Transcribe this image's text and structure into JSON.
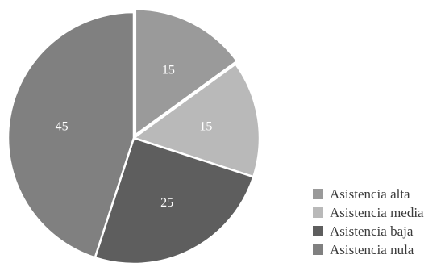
{
  "chart_data": {
    "type": "pie",
    "categories": [
      "Asistencia alta",
      "Asistencia media",
      "Asistencia baja",
      "Asistencia nula"
    ],
    "values": [
      15,
      15,
      25,
      45
    ],
    "data_labels": [
      "15",
      "15",
      "25",
      "45"
    ],
    "colors": [
      "#9a9a9a",
      "#b9b9b9",
      "#5e5e5e",
      "#808080"
    ],
    "exploded_slice": "Asistencia alta",
    "start_angle_deg": 0,
    "direction": "clockwise",
    "legend": {
      "position": "bottom-right",
      "entries": [
        "Asistencia alta",
        "Asistencia media",
        "Asistencia baja",
        "Asistencia nula"
      ]
    },
    "title": "",
    "xlabel": "",
    "ylabel": ""
  }
}
